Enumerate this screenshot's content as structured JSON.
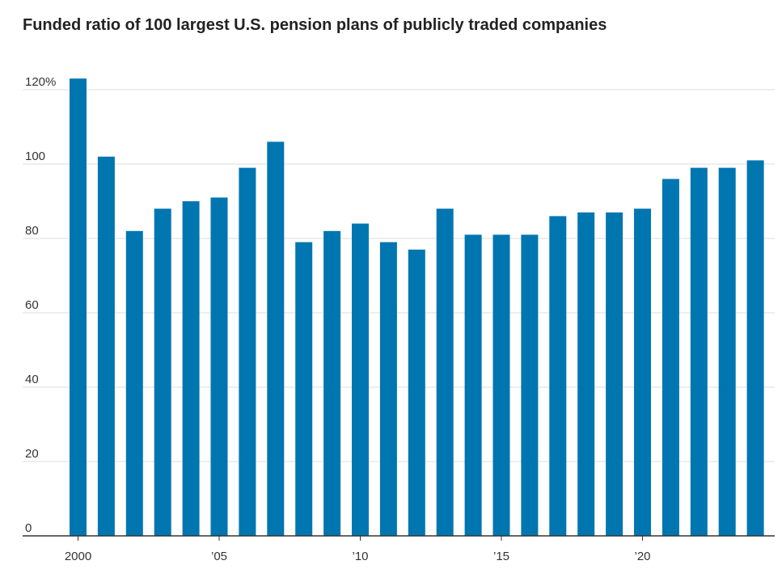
{
  "chart_data": {
    "type": "bar",
    "title": "Funded ratio of 100 largest U.S. pension plans of publicly traded companies",
    "xlabel": "",
    "ylabel": "",
    "categories": [
      "2000",
      "2001",
      "2002",
      "2003",
      "2004",
      "2005",
      "2006",
      "2007",
      "2008",
      "2009",
      "2010",
      "2011",
      "2012",
      "2013",
      "2014",
      "2015",
      "2016",
      "2017",
      "2018",
      "2019",
      "2020",
      "2021",
      "2022",
      "2023",
      "2024"
    ],
    "values": [
      123,
      102,
      82,
      88,
      90,
      91,
      99,
      106,
      79,
      82,
      84,
      79,
      77,
      88,
      81,
      81,
      81,
      86,
      87,
      87,
      88,
      96,
      99,
      99,
      101
    ],
    "ylim": [
      0,
      120
    ],
    "y_ticks": [
      {
        "value": 120,
        "label": "120%"
      },
      {
        "value": 100,
        "label": "100"
      },
      {
        "value": 80,
        "label": "80"
      },
      {
        "value": 60,
        "label": "60"
      },
      {
        "value": 40,
        "label": "40"
      },
      {
        "value": 20,
        "label": "20"
      },
      {
        "value": 0,
        "label": "0"
      }
    ],
    "x_ticks": [
      {
        "category": "2000",
        "label": "2000"
      },
      {
        "category": "2005",
        "label": "’05"
      },
      {
        "category": "2010",
        "label": "’10"
      },
      {
        "category": "2015",
        "label": "’15"
      },
      {
        "category": "2020",
        "label": "’20"
      }
    ],
    "grid": true,
    "bar_color": "#0076b0"
  }
}
